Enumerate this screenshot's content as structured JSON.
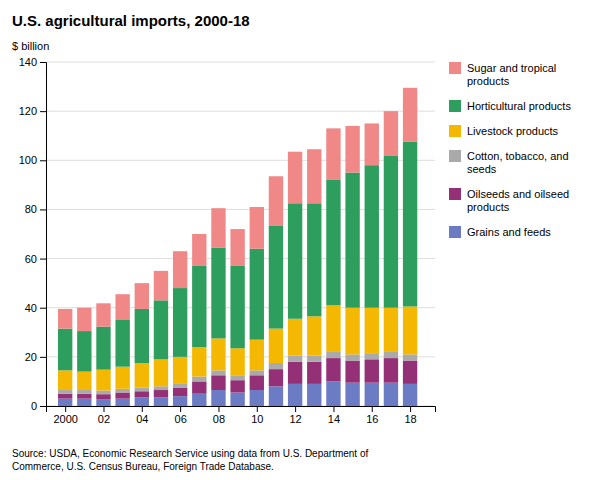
{
  "chart_data": {
    "type": "bar",
    "stacked": true,
    "title": "U.S. agricultural imports, 2000-18",
    "ylabel": "$ billion",
    "annotations": [
      "Source: USDA, Economic Research Service using data from U.S. Department of\nCommerce, U.S. Census Bureau, Foreign Trade Database."
    ],
    "x": [
      2000,
      2001,
      2002,
      2003,
      2004,
      2005,
      2006,
      2007,
      2008,
      2009,
      2010,
      2011,
      2012,
      2013,
      2014,
      2015,
      2016,
      2017,
      2018
    ],
    "xlim": [
      1999.0,
      2019.3
    ],
    "xticks": [
      2000,
      {
        "value": 2002,
        "label": "02"
      },
      {
        "value": 2004,
        "label": "04"
      },
      {
        "value": 2006,
        "label": "06"
      },
      {
        "value": 2008,
        "label": "08"
      },
      {
        "value": 2010,
        "label": "10"
      },
      {
        "value": 2012,
        "label": "12"
      },
      {
        "value": 2014,
        "label": "14"
      },
      {
        "value": 2016,
        "label": "16"
      },
      {
        "value": 2018,
        "label": "18"
      }
    ],
    "ylim": [
      0,
      140
    ],
    "yticks": [
      0,
      20,
      40,
      60,
      80,
      100,
      120,
      140
    ],
    "grid": true,
    "legend": "right",
    "series": [
      {
        "name": "Grains and feeds",
        "color": "#6b7bc4",
        "values": [
          3.0,
          3.0,
          2.8,
          3.0,
          3.5,
          3.5,
          4.0,
          5.0,
          6.5,
          5.5,
          6.5,
          8.0,
          9.0,
          9.0,
          10.0,
          9.5,
          9.5,
          9.5,
          9.0
        ]
      },
      {
        "name": "Oilseeds and oilseed\nproducts",
        "color": "#943076",
        "values": [
          2.0,
          2.0,
          2.0,
          2.5,
          2.5,
          3.0,
          3.5,
          5.0,
          6.0,
          5.0,
          6.0,
          7.0,
          9.0,
          9.0,
          9.5,
          9.0,
          9.5,
          10.0,
          9.5
        ]
      },
      {
        "name": "Cotton, tobacco, and\nseeds",
        "color": "#aaaaaa",
        "values": [
          1.5,
          1.5,
          1.5,
          1.5,
          1.5,
          1.5,
          1.5,
          2.0,
          2.0,
          2.0,
          2.0,
          2.5,
          2.5,
          2.5,
          2.5,
          2.5,
          2.5,
          2.5,
          2.5
        ]
      },
      {
        "name": "Livestock products",
        "color": "#f5b800",
        "values": [
          8.0,
          7.5,
          8.5,
          9.0,
          10.0,
          11.0,
          11.0,
          12.0,
          13.0,
          11.0,
          12.5,
          14.0,
          15.0,
          16.0,
          19.0,
          19.0,
          18.5,
          18.0,
          19.5
        ]
      },
      {
        "name": "Horticultural products",
        "color": "#2e9e5e",
        "values": [
          17.0,
          16.5,
          17.5,
          19.0,
          22.0,
          24.0,
          28.0,
          33.0,
          37.0,
          33.5,
          37.0,
          42.0,
          47.0,
          46.0,
          51.0,
          55.0,
          58.0,
          62.0,
          67.0
        ]
      },
      {
        "name": "Sugar and tropical\nproducts",
        "color": "#f08888",
        "values": [
          8.0,
          9.5,
          9.5,
          10.5,
          10.5,
          12.0,
          15.0,
          13.0,
          16.0,
          15.0,
          17.0,
          20.0,
          21.0,
          22.0,
          21.0,
          19.0,
          17.0,
          18.0,
          22.0
        ]
      }
    ]
  }
}
